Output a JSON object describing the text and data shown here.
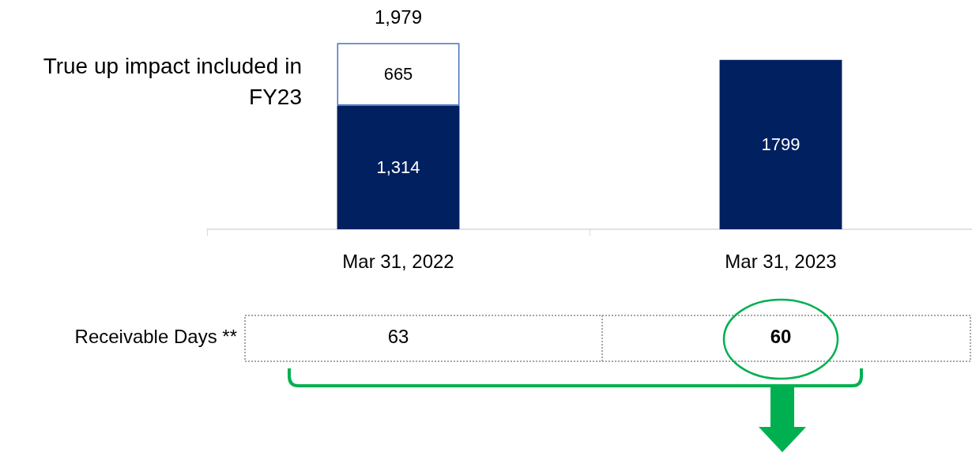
{
  "chart_data": {
    "type": "bar",
    "stacked": true,
    "categories": [
      "Mar 31, 2022",
      "Mar 31, 2023"
    ],
    "series": [
      {
        "color": "#002060",
        "values": [
          1314,
          1799
        ],
        "value_labels": [
          "1,314",
          "1799"
        ]
      },
      {
        "color": "#4472c4",
        "values": [
          665,
          null
        ],
        "value_labels": [
          "665",
          null
        ]
      }
    ],
    "totals": [
      "1,979",
      null
    ],
    "annotations": [
      "True up impact included in FY23",
      "Receivable Days **",
      "63",
      "60"
    ]
  }
}
